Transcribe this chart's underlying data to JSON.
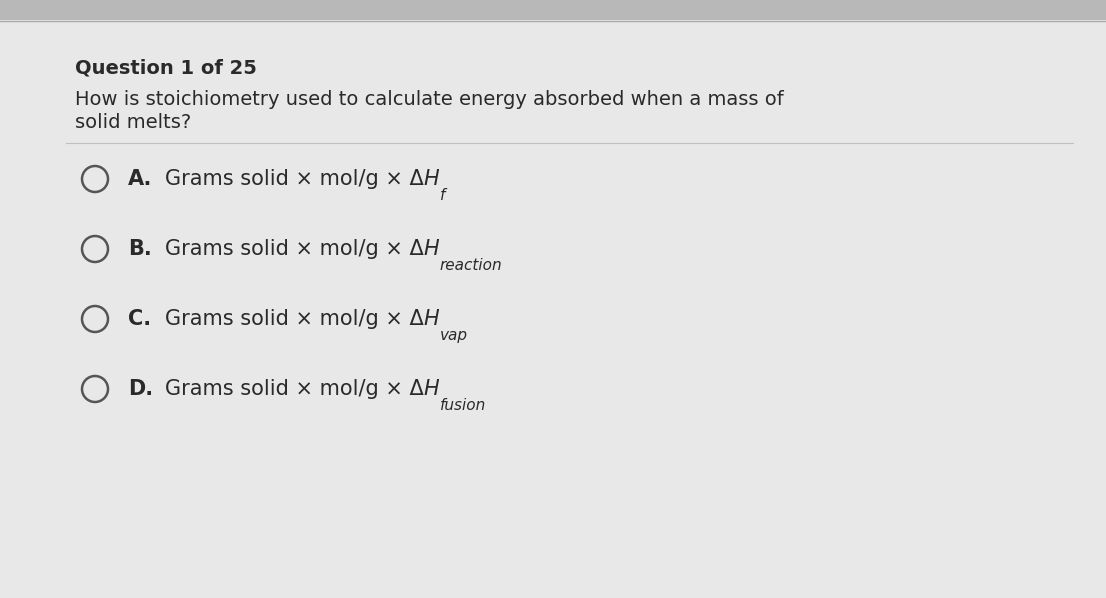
{
  "background_top": "#d0d0d0",
  "background_main": "#e8e8e8",
  "question_header": "Question 1 of 25",
  "question_text_line1": "How is stoichiometry used to calculate energy absorbed when a mass of",
  "question_text_line2": "solid melts?",
  "options": [
    {
      "letter": "A.",
      "main": "Grams solid × mol/g × ΔH",
      "sub": "f"
    },
    {
      "letter": "B.",
      "main": "Grams solid × mol/g × ΔH",
      "sub": "reaction"
    },
    {
      "letter": "C.",
      "main": "Grams solid × mol/g × ΔH",
      "sub": "vap"
    },
    {
      "letter": "D.",
      "main": "Grams solid × mol/g × ΔH",
      "sub": "fusion"
    }
  ],
  "header_fontsize": 14,
  "question_fontsize": 14,
  "option_fontsize": 15,
  "sub_fontsize": 11,
  "text_color": "#2a2a2a",
  "circle_color": "#555555",
  "divider_color": "#c0c0c0",
  "figsize": [
    11.06,
    5.98
  ],
  "dpi": 100
}
